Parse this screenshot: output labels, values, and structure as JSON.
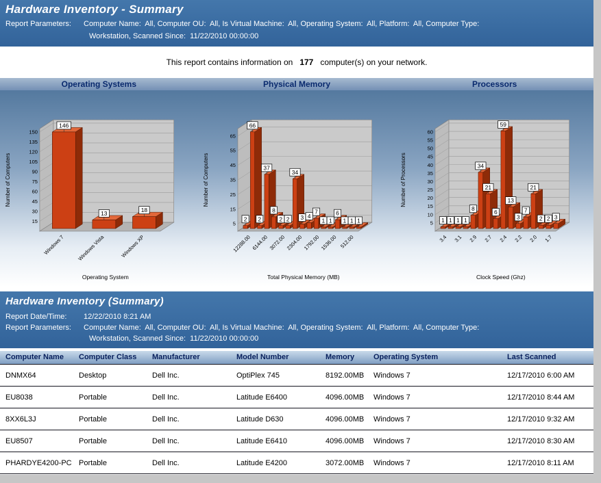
{
  "header": {
    "title": "Hardware Inventory - Summary",
    "params_label": "Report Parameters:",
    "params_rest1": "Computer Name:  All, Computer OU:  All, Is Virtual Machine:  All, Operating System:  All, Platform:  All, Computer Type:",
    "params_rest2": "Workstation, Scanned Since:  11/22/2010 00:00:00"
  },
  "summary": {
    "prefix": "This report contains information on",
    "count": "177",
    "suffix": "computer(s) on your network."
  },
  "chart_data": [
    {
      "type": "bar",
      "title": "Operating Systems",
      "categories": [
        "Windows 7",
        "Windows Vista",
        "Windows XP"
      ],
      "values": [
        146,
        13,
        18
      ],
      "xlabel": "Operating System",
      "ylabel": "Number of Computers",
      "yticks": [
        15,
        30,
        45,
        60,
        75,
        90,
        105,
        120,
        135,
        150
      ],
      "ymax": 155,
      "legend": "none",
      "style_3d": true,
      "bar_color": "#cc4014"
    },
    {
      "type": "bar",
      "title": "Physical Memory",
      "values": [
        2,
        66,
        2,
        37,
        8,
        2,
        2,
        34,
        3,
        4,
        7,
        1,
        1,
        6,
        1,
        1,
        1
      ],
      "x_tick_labels": [
        "12288.00",
        "6144.00",
        "3072.00",
        "2304.00",
        "1792.00",
        "1536.00",
        "512.00"
      ],
      "xlabel": "Total Physical Memory (MB)",
      "ylabel": "Number of Computers",
      "yticks": [
        5,
        15,
        25,
        35,
        45,
        55,
        65
      ],
      "ymax": 70,
      "legend": "none",
      "style_3d": true,
      "bar_color": "#cc4014"
    },
    {
      "type": "bar",
      "title": "Processors",
      "values": [
        1,
        1,
        1,
        1,
        8,
        34,
        21,
        6,
        59,
        13,
        3,
        7,
        21,
        2,
        2,
        3
      ],
      "x_tick_labels": [
        "3.4",
        "3.1",
        "2.9",
        "2.7",
        "2.4",
        "2.2",
        "2.0",
        "1.7"
      ],
      "xlabel": "Clock Speed (Ghz)",
      "ylabel": "Number of Processors",
      "yticks": [
        5,
        10,
        15,
        20,
        25,
        30,
        35,
        40,
        45,
        50,
        55,
        60
      ],
      "ymax": 62,
      "legend": "none",
      "style_3d": true,
      "bar_color": "#cc4014"
    }
  ],
  "section2": {
    "title": "Hardware Inventory (Summary)",
    "date_label": "Report Date/Time:",
    "date_value": "12/22/2010 8:21 AM",
    "params_label": "Report Parameters:",
    "params_rest1": "Computer Name:  All, Computer OU:  All, Is Virtual Machine:  All, Operating System:  All, Platform:  All, Computer Type:",
    "params_rest2": "Workstation, Scanned Since:  11/22/2010 00:00:00"
  },
  "table": {
    "columns": [
      "Computer Name",
      "Computer Class",
      "Manufacturer",
      "Model Number",
      "Memory",
      "Operating System",
      "Last Scanned"
    ],
    "rows": [
      [
        "DNMX64",
        "Desktop",
        "Dell Inc.",
        "OptiPlex 745",
        "8192.00MB",
        "Windows 7",
        "12/17/2010 6:00 AM"
      ],
      [
        "EU8038",
        "Portable",
        "Dell Inc.",
        "Latitude E6400",
        "4096.00MB",
        "Windows 7",
        "12/17/2010 8:44 AM"
      ],
      [
        "8XX6L3J",
        "Portable",
        "Dell Inc.",
        "Latitude D630",
        "4096.00MB",
        "Windows 7",
        "12/17/2010 9:32 AM"
      ],
      [
        "EU8507",
        "Portable",
        "Dell Inc.",
        "Latitude E6410",
        "4096.00MB",
        "Windows 7",
        "12/17/2010 8:30 AM"
      ],
      [
        "PHARDYE4200-PC",
        "Portable",
        "Dell Inc.",
        "Latitude E4200",
        "3072.00MB",
        "Windows 7",
        "12/17/2010 8:11 AM"
      ]
    ]
  },
  "colors": {
    "band_blue": "#3a6ba2",
    "bar_orange": "#cc4014",
    "header_text_navy": "#071f5c",
    "chart_wall_gray": "#cacaca"
  }
}
